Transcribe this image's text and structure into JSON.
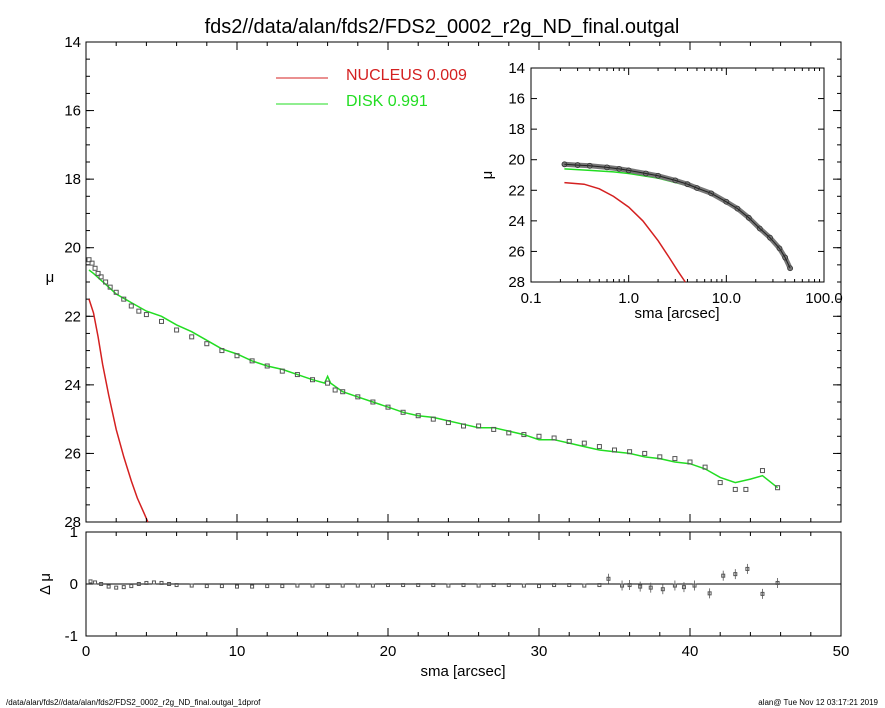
{
  "title": "fds2//data/alan/fds2/FDS2_0002_r2g_ND_final.outgal",
  "footer": {
    "left": "/data/alan/fds2//data/alan/fds2/FDS2_0002_r2g_ND_final.outgal_1dprof",
    "right": "alan@  Tue Nov 12 03:17:21 2019"
  },
  "legend": {
    "nucleus": "NUCLEUS  0.009",
    "disk": "DISK  0.991"
  },
  "colors": {
    "nucleus": "#d42020",
    "disk": "#22dd22",
    "data": "#555555"
  },
  "chart_data": [
    {
      "type": "scatter",
      "name": "main-profile",
      "xlabel": "sma [arcsec]",
      "ylabel": "μ",
      "xlim": [
        0,
        50
      ],
      "ylim": [
        28,
        14
      ],
      "xticks": [
        "0",
        "10",
        "20",
        "30",
        "40",
        "50"
      ],
      "yticks": [
        "14",
        "16",
        "18",
        "20",
        "22",
        "24",
        "26",
        "28"
      ],
      "data_points": {
        "x": [
          0.2,
          0.4,
          0.6,
          0.8,
          1.0,
          1.3,
          1.6,
          2.0,
          2.5,
          3.0,
          3.5,
          4.0,
          5.0,
          6.0,
          7.0,
          8.0,
          9.0,
          10.0,
          11.0,
          12.0,
          13.0,
          14.0,
          15.0,
          16.0,
          16.5,
          17.0,
          18.0,
          19.0,
          20.0,
          21.0,
          22.0,
          23.0,
          24.0,
          25.0,
          26.0,
          27.0,
          28.0,
          29.0,
          30.0,
          31.0,
          32.0,
          33.0,
          34.0,
          35.0,
          36.0,
          37.0,
          38.0,
          39.0,
          40.0,
          41.0,
          42.0,
          43.0,
          43.7,
          44.8,
          45.8
        ],
        "y": [
          20.35,
          20.45,
          20.6,
          20.75,
          20.85,
          21.0,
          21.15,
          21.3,
          21.5,
          21.7,
          21.85,
          21.95,
          22.15,
          22.4,
          22.6,
          22.8,
          23.0,
          23.15,
          23.3,
          23.45,
          23.6,
          23.7,
          23.85,
          23.95,
          24.15,
          24.2,
          24.35,
          24.5,
          24.65,
          24.8,
          24.9,
          25.0,
          25.1,
          25.2,
          25.2,
          25.3,
          25.4,
          25.45,
          25.5,
          25.55,
          25.65,
          25.7,
          25.8,
          25.9,
          25.95,
          26.0,
          26.1,
          26.15,
          26.25,
          26.4,
          26.85,
          27.05,
          27.05,
          26.5,
          27.0
        ]
      },
      "disk_model": {
        "x": [
          0.2,
          0.5,
          1.0,
          1.5,
          2.0,
          3.0,
          4.0,
          5.0,
          6.0,
          7.0,
          8.0,
          9.0,
          10.0,
          11.0,
          12.0,
          13.0,
          14.0,
          15.0,
          15.8,
          16.0,
          16.2,
          17.0,
          18.0,
          19.0,
          20.0,
          21.0,
          22.0,
          23.0,
          24.0,
          25.0,
          26.0,
          27.0,
          28.0,
          29.0,
          30.0,
          31.0,
          32.0,
          33.0,
          34.0,
          35.0,
          36.0,
          37.0,
          38.0,
          39.0,
          40.0,
          41.0,
          42.0,
          43.0,
          44.0,
          44.8,
          45.8
        ],
        "y": [
          20.65,
          20.75,
          20.95,
          21.15,
          21.35,
          21.6,
          21.85,
          22.0,
          22.25,
          22.45,
          22.7,
          22.95,
          23.1,
          23.3,
          23.45,
          23.55,
          23.7,
          23.85,
          23.95,
          23.75,
          23.95,
          24.2,
          24.35,
          24.5,
          24.65,
          24.8,
          24.9,
          24.95,
          25.05,
          25.15,
          25.25,
          25.25,
          25.35,
          25.45,
          25.6,
          25.6,
          25.7,
          25.8,
          25.9,
          25.95,
          26.0,
          26.1,
          26.15,
          26.25,
          26.3,
          26.45,
          26.7,
          26.85,
          26.75,
          26.65,
          27.0
        ]
      },
      "nucleus_model": {
        "x": [
          0.2,
          0.5,
          0.8,
          1.1,
          1.5,
          2.0,
          2.5,
          3.0,
          3.4,
          3.8,
          4.1
        ],
        "y": [
          21.5,
          21.9,
          22.6,
          23.4,
          24.3,
          25.3,
          26.1,
          26.8,
          27.3,
          27.7,
          28.0
        ]
      }
    },
    {
      "type": "scatter",
      "name": "residuals",
      "ylabel": "Δ μ",
      "xlim": [
        0,
        50
      ],
      "ylim": [
        -1,
        1
      ],
      "yticks": [
        "1",
        "0",
        "-1"
      ],
      "x": [
        0.3,
        0.6,
        1.0,
        1.5,
        2.0,
        2.5,
        3.0,
        3.5,
        4.0,
        4.5,
        5.0,
        5.5,
        6.0,
        7.0,
        8.0,
        9.0,
        10.0,
        11.0,
        12.0,
        13.0,
        14.0,
        15.0,
        16.0,
        17.0,
        18.0,
        19.0,
        20.0,
        21.0,
        22.0,
        23.0,
        24.0,
        25.0,
        26.0,
        27.0,
        28.0,
        29.0,
        30.0,
        31.0,
        32.0,
        33.0,
        34.0,
        34.6,
        35.5,
        36.0,
        36.7,
        37.4,
        38.2,
        39.0,
        39.6,
        40.3,
        41.3,
        42.2,
        43.0,
        43.8,
        44.8,
        45.8
      ],
      "y": [
        0.05,
        0.03,
        0.0,
        -0.05,
        -0.07,
        -0.06,
        -0.04,
        0.0,
        0.02,
        0.03,
        0.02,
        0.0,
        -0.02,
        -0.03,
        -0.04,
        -0.04,
        -0.05,
        -0.05,
        -0.04,
        -0.04,
        -0.03,
        -0.03,
        -0.04,
        -0.03,
        -0.03,
        -0.03,
        -0.02,
        -0.02,
        -0.02,
        -0.02,
        -0.03,
        -0.02,
        -0.03,
        -0.02,
        -0.02,
        -0.03,
        -0.04,
        -0.02,
        -0.02,
        -0.03,
        -0.02,
        0.1,
        -0.03,
        -0.02,
        -0.05,
        -0.07,
        -0.1,
        -0.03,
        -0.06,
        -0.03,
        -0.18,
        0.16,
        0.19,
        0.29,
        -0.19,
        0.02
      ]
    },
    {
      "type": "line",
      "name": "inset-log",
      "xlabel": "sma [arcsec]",
      "ylabel": "μ",
      "xscale": "log",
      "xlim": [
        0.1,
        100
      ],
      "ylim": [
        28,
        14
      ],
      "xticks": [
        "0.1",
        "1.0",
        "10.0",
        "100.0"
      ],
      "yticks": [
        "14",
        "16",
        "18",
        "20",
        "22",
        "24",
        "26",
        "28"
      ],
      "data_points": {
        "x": [
          0.22,
          0.3,
          0.4,
          0.6,
          0.8,
          1.0,
          1.5,
          2.0,
          3.0,
          4.0,
          5.0,
          7.0,
          10.0,
          13.0,
          17.0,
          22.0,
          28.0,
          35.0,
          40.0,
          45.0
        ],
        "y": [
          20.3,
          20.35,
          20.4,
          20.5,
          20.6,
          20.7,
          20.9,
          21.05,
          21.35,
          21.6,
          21.85,
          22.2,
          22.75,
          23.2,
          23.8,
          24.5,
          25.1,
          25.8,
          26.4,
          27.1
        ]
      },
      "disk_model": {
        "x": [
          0.22,
          0.4,
          0.7,
          1.0,
          2.0,
          4.0,
          7.0,
          10.0,
          15.0,
          20.0,
          30.0,
          45.0
        ],
        "y": [
          20.6,
          20.7,
          20.8,
          20.9,
          21.2,
          21.7,
          22.25,
          22.8,
          23.5,
          24.2,
          25.3,
          27.0
        ]
      },
      "nucleus_model": {
        "x": [
          0.22,
          0.35,
          0.5,
          0.7,
          1.0,
          1.4,
          2.0,
          2.6,
          3.2,
          3.8
        ],
        "y": [
          21.5,
          21.6,
          21.9,
          22.4,
          23.1,
          24.0,
          25.3,
          26.4,
          27.3,
          28.0
        ]
      }
    }
  ]
}
